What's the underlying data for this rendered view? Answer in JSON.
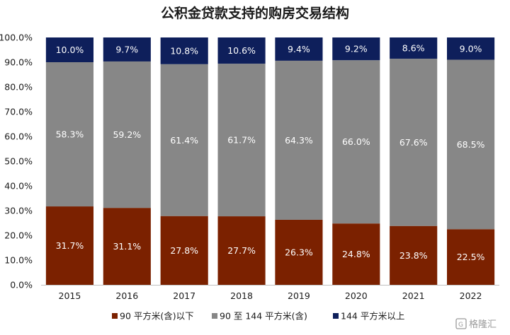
{
  "chart_data": {
    "type": "bar",
    "stacked": true,
    "title": "公积金贷款支持的购房交易结构",
    "categories": [
      "2015",
      "2016",
      "2017",
      "2018",
      "2019",
      "2020",
      "2021",
      "2022"
    ],
    "series": [
      {
        "name": "90 平方米(含)以下",
        "color": "#7b2100",
        "values": [
          31.7,
          31.1,
          27.8,
          27.7,
          26.3,
          24.8,
          23.8,
          22.5
        ]
      },
      {
        "name": "90 至 144 平方米(含)",
        "color": "#878787",
        "values": [
          58.3,
          59.2,
          61.4,
          61.7,
          64.3,
          66.0,
          67.6,
          68.5
        ]
      },
      {
        "name": "144 平方米以上",
        "color": "#0e1f5b",
        "values": [
          10.0,
          9.7,
          10.8,
          10.6,
          9.4,
          9.2,
          8.6,
          9.0
        ]
      }
    ],
    "ylim": [
      0,
      100
    ],
    "y_ticks": [
      "0.0%",
      "10.0%",
      "20.0%",
      "30.0%",
      "40.0%",
      "50.0%",
      "60.0%",
      "70.0%",
      "80.0%",
      "90.0%",
      "100.0%"
    ],
    "value_labels": [
      [
        "31.7%",
        "31.1%",
        "27.8%",
        "27.7%",
        "26.3%",
        "24.8%",
        "23.8%",
        "22.5%"
      ],
      [
        "58.3%",
        "59.2%",
        "61.4%",
        "61.7%",
        "64.3%",
        "66.0%",
        "67.6%",
        "68.5%"
      ],
      [
        "10.0%",
        "9.7%",
        "10.8%",
        "10.6%",
        "9.4%",
        "9.2%",
        "8.6%",
        "9.0%"
      ]
    ],
    "xlabel": "",
    "ylabel": "",
    "grid": false,
    "legend_position": "bottom"
  },
  "watermark": {
    "text": "格隆汇",
    "icon": "glh-logo-icon"
  }
}
